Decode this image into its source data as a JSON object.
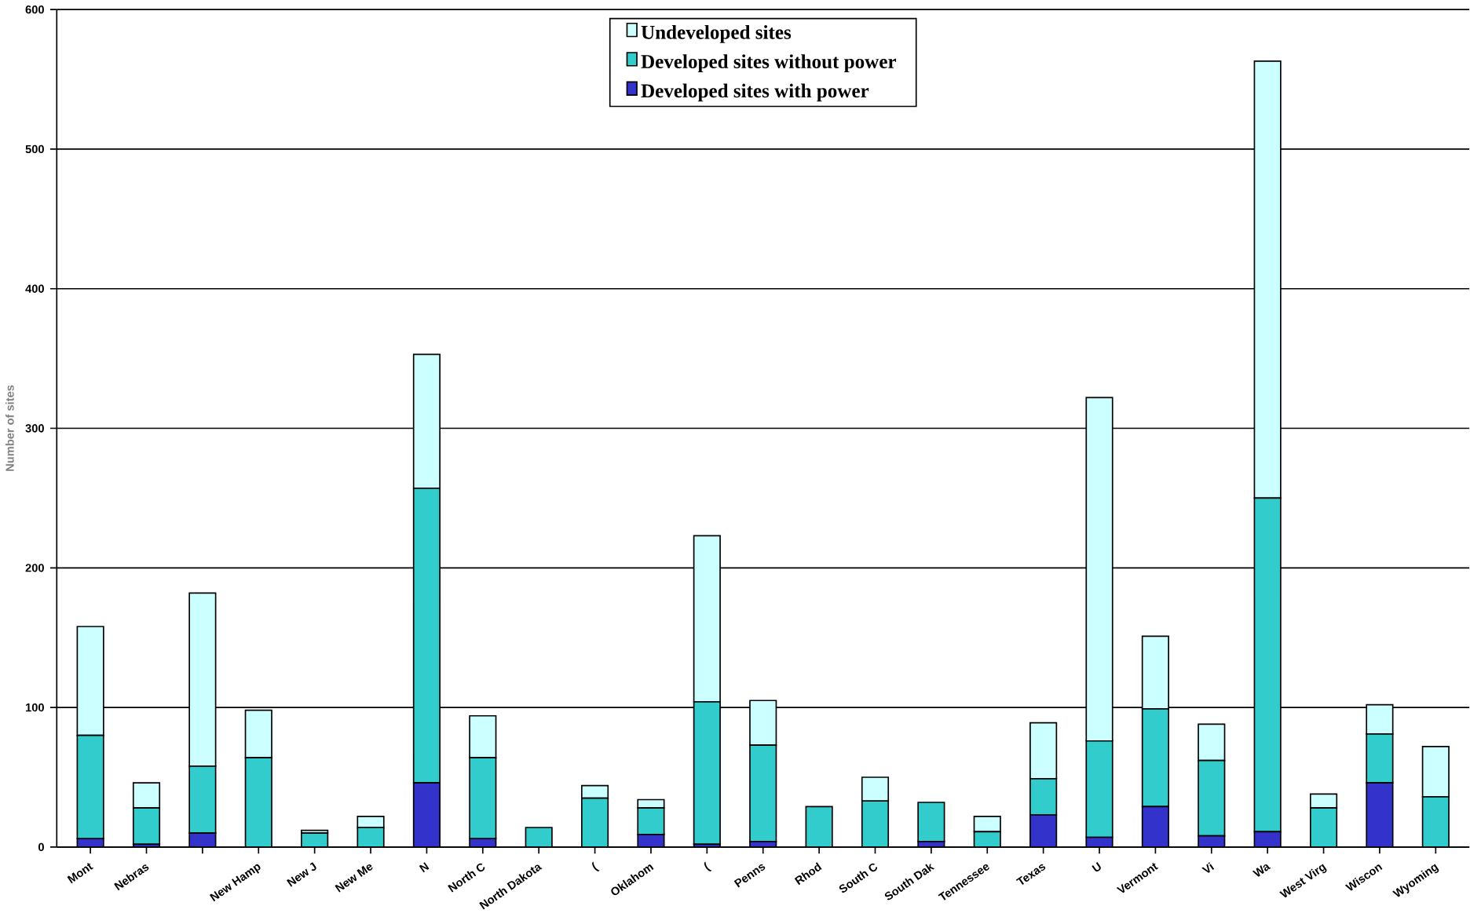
{
  "chart_data": {
    "type": "bar",
    "stacked": true,
    "ylabel": "Number of sites",
    "categories": [
      "Mont",
      "Nebras",
      null,
      "New Hamp",
      "New J",
      "New Me",
      "N",
      "North C",
      "North Dakota",
      "(",
      "Oklahom",
      "(",
      "Penns",
      "Rhod",
      "South C",
      "South Dak",
      "Tennessee",
      "Texas",
      "U",
      "Vermont",
      "Vi",
      "Wa",
      "West Virg",
      "Wiscon",
      "Wyoming"
    ],
    "series": [
      {
        "name": "Developed sites with power",
        "color": "#3333cc",
        "values": [
          6,
          2,
          10,
          0,
          0,
          0,
          46,
          6,
          0,
          0,
          9,
          2,
          4,
          0,
          0,
          4,
          0,
          23,
          7,
          29,
          8,
          11,
          0,
          46,
          0
        ]
      },
      {
        "name": "Developed sites without power",
        "color": "#33cccc",
        "values": [
          74,
          26,
          48,
          64,
          10,
          14,
          211,
          58,
          14,
          35,
          19,
          102,
          69,
          29,
          33,
          28,
          11,
          26,
          69,
          70,
          54,
          239,
          28,
          35,
          36
        ]
      },
      {
        "name": "Undeveloped sites",
        "color": "#ccffff",
        "values": [
          78,
          18,
          124,
          34,
          2,
          8,
          96,
          30,
          0,
          9,
          6,
          119,
          32,
          0,
          17,
          0,
          11,
          40,
          246,
          52,
          26,
          313,
          10,
          21,
          36
        ]
      }
    ],
    "ylim": [
      0,
      600
    ],
    "yticks": [
      0,
      100,
      200,
      300,
      400,
      500,
      600
    ],
    "grid": "y",
    "legend": "top"
  }
}
